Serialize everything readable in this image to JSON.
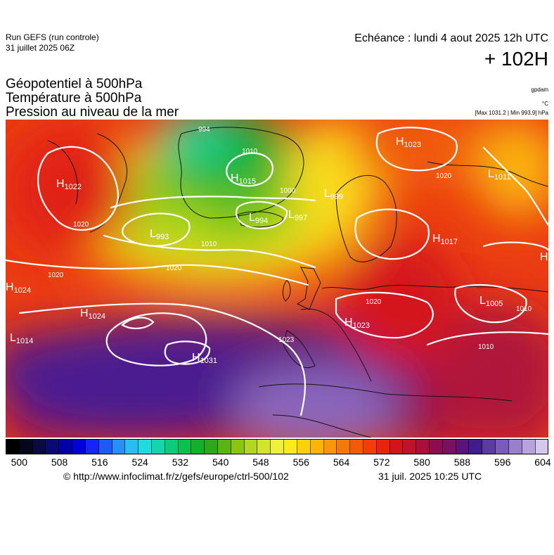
{
  "header": {
    "run_title": "Run GEFS (run controle)",
    "run_date": "31 juillet 2025 06Z",
    "valid_time": "Echéance : lundi 4 aout 2025 12h UTC",
    "lead_time": "+ 102H"
  },
  "parameters": {
    "line1": "Géopotentiel à 500hPa",
    "line2": "Température à 500hPa",
    "line3": "Pression au niveau de la mer"
  },
  "units": {
    "geopotential": "gpdam",
    "temperature": "°C",
    "pressure_range": "[Max 1031.2 | Min 993.9] hPa"
  },
  "colorbar": {
    "tick_labels": [
      "500",
      "508",
      "516",
      "524",
      "532",
      "540",
      "548",
      "556",
      "564",
      "572",
      "580",
      "588",
      "596",
      "604"
    ],
    "colors": [
      "#000000",
      "#06061c",
      "#0a0a40",
      "#0a0a72",
      "#0000a6",
      "#0000d8",
      "#1426f4",
      "#1e5af5",
      "#2890f5",
      "#28bff0",
      "#1edcdc",
      "#14d6ac",
      "#0acc7a",
      "#0ac04e",
      "#14b02a",
      "#2ea81a",
      "#5ab414",
      "#8cc414",
      "#b4d61e",
      "#d4e428",
      "#eef03a",
      "#faea1e",
      "#fad20a",
      "#fab40a",
      "#fa960a",
      "#f5780a",
      "#f55a0a",
      "#f53c0a",
      "#e82410",
      "#d4141a",
      "#c01228",
      "#a8103a",
      "#8c0e50",
      "#7a1060",
      "#5a1478",
      "#401c8c",
      "#5a3ca0",
      "#7a5cb4",
      "#9a80c8",
      "#b8a4da",
      "#d6c8ec"
    ],
    "tick_positions": [
      0.025,
      0.0992,
      0.1734,
      0.2476,
      0.3218,
      0.396,
      0.4702,
      0.5444,
      0.6186,
      0.6928,
      0.767,
      0.8412,
      0.9154,
      0.9896
    ]
  },
  "map": {
    "pressure_centers": [
      {
        "type": "H",
        "value": "1022"
      },
      {
        "type": "H",
        "value": "1015"
      },
      {
        "type": "H",
        "value": "1024"
      },
      {
        "type": "H",
        "value": "1024"
      },
      {
        "type": "H",
        "value": "1031"
      },
      {
        "type": "H",
        "value": "1023"
      },
      {
        "type": "H",
        "value": "1017"
      },
      {
        "type": "H",
        "value": "1023"
      },
      {
        "type": "H",
        "value": ""
      },
      {
        "type": "L",
        "value": "993"
      },
      {
        "type": "L",
        "value": "994"
      },
      {
        "type": "L",
        "value": "997"
      },
      {
        "type": "L",
        "value": "999"
      },
      {
        "type": "L",
        "value": "1011"
      },
      {
        "type": "L",
        "value": "1005"
      },
      {
        "type": "L",
        "value": "1014"
      }
    ],
    "isobar_labels": [
      "994",
      "1010",
      "1000",
      "1020",
      "1010",
      "1020",
      "1020",
      "1023",
      "1020",
      "1010",
      "1020",
      "1010"
    ]
  },
  "footer": {
    "url": "© http://www.infoclimat.fr/z/gefs/europe/ctrl-500/102",
    "generated": "31 juil. 2025 10:25 UTC"
  }
}
